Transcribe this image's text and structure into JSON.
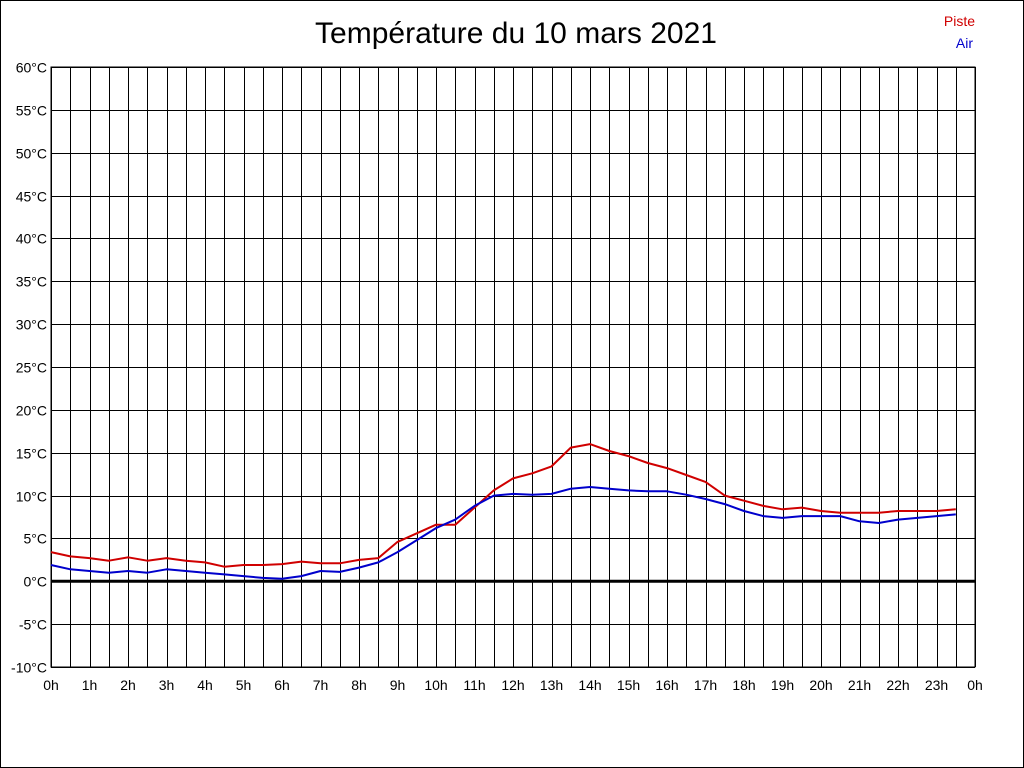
{
  "colors": {
    "piste": "#d00000",
    "air": "#0000cc",
    "grid": "#000000",
    "background": "#ffffff"
  },
  "chart_data": {
    "type": "line",
    "title": "Température du 10 mars 2021",
    "xlabel": "",
    "ylabel": "",
    "x_tick_labels": [
      "0h",
      "1h",
      "2h",
      "3h",
      "4h",
      "5h",
      "6h",
      "7h",
      "8h",
      "9h",
      "10h",
      "11h",
      "12h",
      "13h",
      "14h",
      "15h",
      "16h",
      "17h",
      "18h",
      "19h",
      "20h",
      "21h",
      "22h",
      "23h",
      "0h"
    ],
    "y_tick_labels": [
      "60°C",
      "55°C",
      "50°C",
      "45°C",
      "40°C",
      "35°C",
      "30°C",
      "25°C",
      "20°C",
      "15°C",
      "10°C",
      "5°C",
      "0°C",
      "-5°C",
      "-10°C"
    ],
    "ylim": [
      -10,
      60
    ],
    "xlim": [
      0,
      24
    ],
    "grid": true,
    "legend_position": "top-right",
    "x": [
      0,
      0.5,
      1,
      1.5,
      2,
      2.5,
      3,
      3.5,
      4,
      4.5,
      5,
      5.5,
      6,
      6.5,
      7,
      7.5,
      8,
      8.5,
      9,
      9.5,
      10,
      10.5,
      11,
      11.5,
      12,
      12.5,
      13,
      13.5,
      14,
      14.5,
      15,
      15.5,
      16,
      16.5,
      17,
      17.5,
      18,
      18.5,
      19,
      19.5,
      20,
      20.5,
      21,
      21.5,
      22,
      22.5,
      23,
      23.5
    ],
    "series": [
      {
        "name": "Piste",
        "color": "#d00000",
        "values": [
          3.4,
          2.9,
          2.7,
          2.4,
          2.8,
          2.4,
          2.7,
          2.4,
          2.2,
          1.7,
          1.9,
          1.9,
          2.0,
          2.3,
          2.1,
          2.1,
          2.5,
          2.7,
          4.6,
          5.6,
          6.6,
          6.6,
          8.6,
          10.6,
          12.0,
          12.6,
          13.4,
          15.6,
          16.0,
          15.2,
          14.6,
          13.8,
          13.2,
          12.4,
          11.6,
          10.0,
          9.4,
          8.8,
          8.4,
          8.6,
          8.2,
          8.0,
          8.0,
          8.0,
          8.2,
          8.2,
          8.2,
          8.4
        ]
      },
      {
        "name": "Air",
        "color": "#0000cc",
        "values": [
          1.9,
          1.4,
          1.2,
          1.0,
          1.2,
          1.0,
          1.4,
          1.2,
          1.0,
          0.8,
          0.6,
          0.4,
          0.3,
          0.6,
          1.2,
          1.1,
          1.6,
          2.2,
          3.4,
          4.8,
          6.2,
          7.2,
          8.8,
          10.0,
          10.2,
          10.1,
          10.2,
          10.8,
          11.0,
          10.8,
          10.6,
          10.5,
          10.5,
          10.1,
          9.6,
          9.0,
          8.2,
          7.6,
          7.4,
          7.6,
          7.6,
          7.6,
          7.0,
          6.8,
          7.2,
          7.4,
          7.6,
          7.8
        ]
      }
    ]
  }
}
